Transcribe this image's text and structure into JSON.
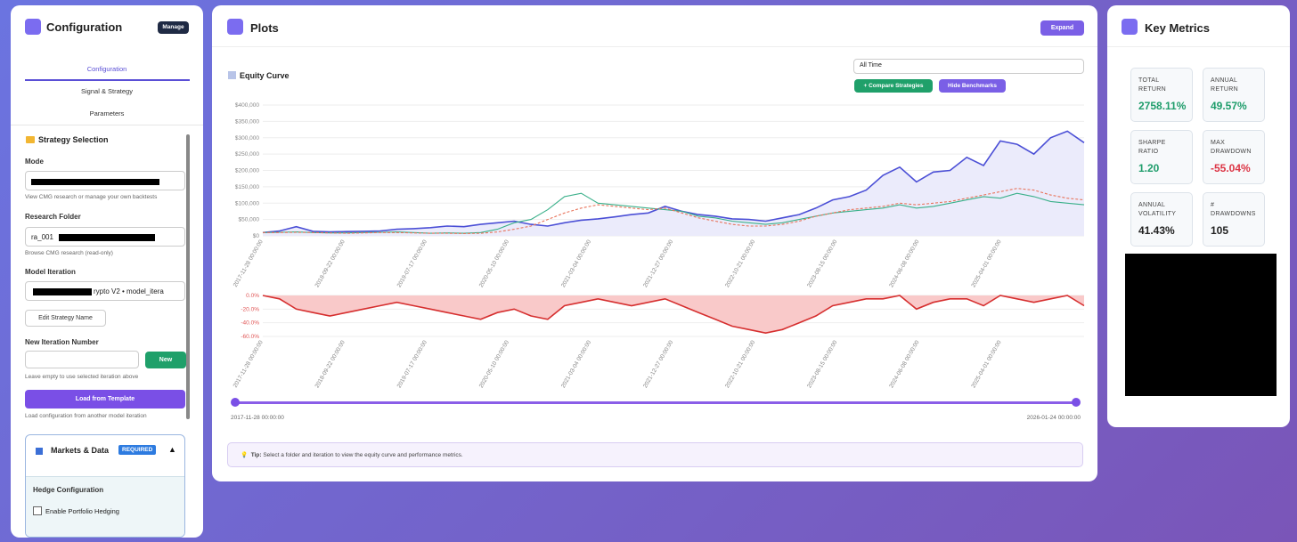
{
  "sidebar": {
    "title": "Configuration",
    "manage": "Manage",
    "tabs": [
      "Configuration",
      "Signal & Strategy",
      "Parameters"
    ],
    "section": "Strategy Selection",
    "mode_label": "Mode",
    "mode_help": "View CMG research or manage your own backtests",
    "folder_label": "Research Folder",
    "folder_value": "ra_001",
    "folder_help": "Browse CMG research (read-only)",
    "iteration_label": "Model Iteration",
    "iteration_value": "rypto V2 • model_itera",
    "edit_button": "Edit Strategy Name",
    "new_iter_label": "New Iteration Number",
    "new_button": "New",
    "new_iter_help": "Leave empty to use selected iteration above",
    "template_button": "Load from Template",
    "template_help": "Load configuration from another model iteration",
    "markets_title": "Markets & Data",
    "required_badge": "REQUIRED",
    "hedge_title": "Hedge Configuration",
    "hedge_checkbox": "Enable Portfolio Hedging"
  },
  "plots": {
    "title": "Plots",
    "expand": "Expand",
    "range_select": "All Time",
    "compare_button": "+ Compare Strategies",
    "benchmarks_button": "Hide Benchmarks",
    "range_start": "2017-11-28 00:00:00",
    "range_end": "2026-01-24 00:00:00",
    "tip_label": "Tip:",
    "tip_text": "Select a folder and iteration to view the equity curve and performance metrics."
  },
  "metrics": {
    "title": "Key Metrics",
    "cards": [
      {
        "label": "TOTAL RETURN",
        "value": "2758.11%",
        "color": "#1f9d6b"
      },
      {
        "label": "ANNUAL RETURN",
        "value": "49.57%",
        "color": "#1f9d6b"
      },
      {
        "label": "SHARPE RATIO",
        "value": "1.20",
        "color": "#1f9d6b"
      },
      {
        "label": "MAX DRAWDOWN",
        "value": "-55.04%",
        "color": "#dc3545"
      },
      {
        "label": "ANNUAL VOLATILITY",
        "value": "41.43%",
        "color": "#222222"
      },
      {
        "label": "# DRAWDOWNS",
        "value": "105",
        "color": "#222222"
      }
    ]
  },
  "chart_data": [
    {
      "type": "line",
      "title": "Equity Curve",
      "xtick_labels": [
        "2017-11-28 00:00:00",
        "2018-09-22 00:00:00",
        "2019-07-17 00:00:00",
        "2020-05-10 00:00:00",
        "2021-03-04 00:00:00",
        "2021-12-27 00:00:00",
        "2022-10-21 00:00:00",
        "2023-08-15 00:00:00",
        "2024-06-08 00:00:00",
        "2025-04-01 00:00:00"
      ],
      "ylim": [
        0,
        400000
      ],
      "yticks": [
        {
          "value": 0,
          "label": "$0"
        },
        {
          "value": 50000,
          "label": "$50,000"
        },
        {
          "value": 100000,
          "label": "$100,000"
        },
        {
          "value": 150000,
          "label": "$150,000"
        },
        {
          "value": 200000,
          "label": "$200,000"
        },
        {
          "value": 250000,
          "label": "$250,000"
        },
        {
          "value": 300000,
          "label": "$300,000"
        },
        {
          "value": 350000,
          "label": "$350,000"
        },
        {
          "value": 400000,
          "label": "$400,000"
        }
      ],
      "grid": true,
      "series": [
        {
          "color": "#4b4fd6",
          "area": true,
          "values": [
            10000,
            15000,
            28000,
            14000,
            12000,
            13000,
            14000,
            15000,
            20000,
            22000,
            25000,
            30000,
            28000,
            35000,
            40000,
            45000,
            35000,
            30000,
            40000,
            48000,
            52000,
            58000,
            65000,
            70000,
            90000,
            75000,
            65000,
            60000,
            52000,
            50000,
            45000,
            55000,
            65000,
            85000,
            110000,
            120000,
            140000,
            185000,
            210000,
            165000,
            195000,
            200000,
            240000,
            215000,
            290000,
            280000,
            250000,
            300000,
            320000,
            285000
          ]
        },
        {
          "color": "#3ab08a",
          "values": [
            10000,
            11000,
            12000,
            10000,
            9000,
            9000,
            10000,
            11000,
            12000,
            10000,
            8000,
            9000,
            8000,
            10000,
            20000,
            40000,
            50000,
            80000,
            120000,
            130000,
            100000,
            95000,
            90000,
            85000,
            80000,
            75000,
            60000,
            55000,
            45000,
            40000,
            35000,
            40000,
            50000,
            60000,
            70000,
            75000,
            80000,
            85000,
            95000,
            85000,
            90000,
            100000,
            110000,
            120000,
            115000,
            130000,
            120000,
            105000,
            100000,
            95000
          ]
        },
        {
          "color": "#e8735a",
          "dashed": true,
          "values": [
            10000,
            10000,
            11000,
            10000,
            9000,
            8000,
            9000,
            10000,
            10000,
            9000,
            8000,
            8000,
            7000,
            8000,
            12000,
            20000,
            30000,
            50000,
            70000,
            85000,
            95000,
            90000,
            85000,
            80000,
            85000,
            70000,
            55000,
            45000,
            35000,
            30000,
            30000,
            35000,
            45000,
            60000,
            70000,
            80000,
            85000,
            90000,
            100000,
            95000,
            100000,
            105000,
            115000,
            125000,
            135000,
            145000,
            140000,
            125000,
            115000,
            110000
          ]
        }
      ]
    },
    {
      "type": "drawdown",
      "xtick_labels": [
        "2017-11-28 00:00:00",
        "2018-09-22 00:00:00",
        "2019-07-17 00:00:00",
        "2020-05-10 00:00:00",
        "2021-03-04 00:00:00",
        "2021-12-27 00:00:00",
        "2022-10-21 00:00:00",
        "2023-08-15 00:00:00",
        "2024-06-08 00:00:00",
        "2025-04-01 00:00:00"
      ],
      "ylim": [
        -60,
        0
      ],
      "yticks": [
        {
          "value": 0,
          "label": "0.0%"
        },
        {
          "value": -20,
          "label": "-20.0%"
        },
        {
          "value": -40,
          "label": "-40.0%"
        },
        {
          "value": -60,
          "label": "-60.0%"
        }
      ],
      "grid": true,
      "series": [
        {
          "color": "#d62f2f",
          "values": [
            0,
            -5,
            -20,
            -25,
            -30,
            -25,
            -20,
            -15,
            -10,
            -15,
            -20,
            -25,
            -30,
            -35,
            -25,
            -20,
            -30,
            -35,
            -15,
            -10,
            -5,
            -10,
            -15,
            -10,
            -5,
            -15,
            -25,
            -35,
            -45,
            -50,
            -55,
            -50,
            -40,
            -30,
            -15,
            -10,
            -5,
            -5,
            0,
            -20,
            -10,
            -5,
            -5,
            -15,
            0,
            -5,
            -10,
            -5,
            0,
            -15
          ]
        }
      ]
    }
  ]
}
